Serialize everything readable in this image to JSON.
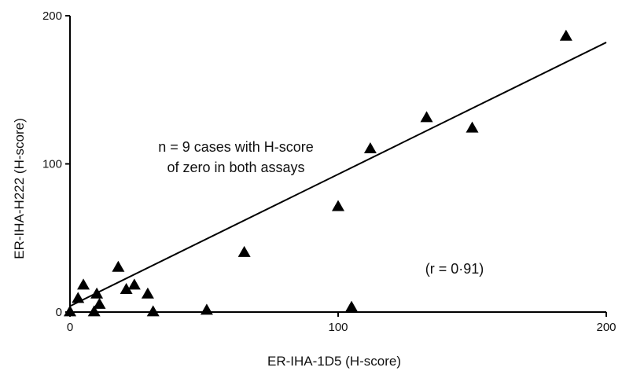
{
  "chart_data": {
    "type": "scatter",
    "title": "",
    "xlabel": "ER-IHA-1D5 (H-score)",
    "ylabel": "ER-IHA-H222 (H-score)",
    "xlim": [
      0,
      200
    ],
    "ylim": [
      0,
      200
    ],
    "xticks": [
      "0",
      "100",
      "200"
    ],
    "yticks": [
      "0",
      "100",
      "200"
    ],
    "grid": false,
    "marker": "triangle",
    "marker_color": "#000000",
    "points": [
      {
        "x": 0,
        "y": 0
      },
      {
        "x": 3,
        "y": 9
      },
      {
        "x": 5,
        "y": 18
      },
      {
        "x": 9,
        "y": 0
      },
      {
        "x": 10,
        "y": 12
      },
      {
        "x": 11,
        "y": 5
      },
      {
        "x": 18,
        "y": 30
      },
      {
        "x": 21,
        "y": 15
      },
      {
        "x": 24,
        "y": 18
      },
      {
        "x": 29,
        "y": 12
      },
      {
        "x": 31,
        "y": 0
      },
      {
        "x": 51,
        "y": 1
      },
      {
        "x": 65,
        "y": 40
      },
      {
        "x": 100,
        "y": 71
      },
      {
        "x": 105,
        "y": 3
      },
      {
        "x": 112,
        "y": 110
      },
      {
        "x": 133,
        "y": 131
      },
      {
        "x": 150,
        "y": 124
      },
      {
        "x": 185,
        "y": 186
      }
    ],
    "fit_line": {
      "x": [
        0,
        200
      ],
      "y": [
        4,
        182
      ]
    },
    "annotations": {
      "zero_note_line1": "n = 9 cases with H-score",
      "zero_note_line2": "of zero in both assays",
      "correlation": "(r = 0·91)"
    }
  }
}
